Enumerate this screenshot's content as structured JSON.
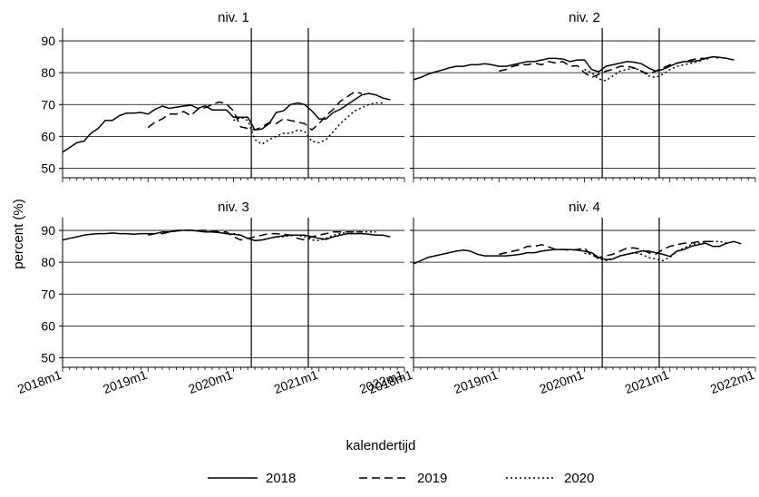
{
  "chart_data": {
    "type": "line",
    "ylabel": "percent (%)",
    "xlabel": "kalendertijd",
    "ylim": [
      47,
      94
    ],
    "yticks": [
      50,
      60,
      70,
      80,
      90
    ],
    "ytick_labels": [
      "50",
      "60",
      "70",
      "80",
      "90"
    ],
    "xlim": [
      0,
      48
    ],
    "xticks": [
      0,
      12,
      24,
      36,
      48
    ],
    "xtick_labels": [
      "2018m1",
      "2019m1",
      "2020m1",
      "2021m1",
      "2022m1"
    ],
    "vlines": [
      26.5,
      34.5
    ],
    "grid": "horizontal",
    "legend": {
      "position": "bottom",
      "entries": [
        {
          "label": "2018",
          "dash": "solid"
        },
        {
          "label": "2019",
          "dash": "dashed"
        },
        {
          "label": "2020",
          "dash": "dotted"
        }
      ]
    },
    "panels": [
      {
        "title": "niv. 1",
        "series": [
          {
            "name": "2018",
            "start": 0,
            "values": [
              55,
              56.5,
              58,
              58.5,
              61,
              62.5,
              65,
              65,
              66.5,
              67.3,
              67.3,
              67.5,
              67,
              68.5,
              69.5,
              68.8,
              69.2,
              69.5,
              69.8,
              68.8,
              69.6,
              68.3,
              68.3,
              68.3,
              66,
              66,
              66,
              62,
              62.3,
              64,
              67.5,
              68,
              70,
              70.5,
              70,
              68,
              65.5,
              65.5,
              67.5,
              68.5,
              70,
              71.5,
              73,
              73.5,
              73,
              72,
              71.5
            ]
          },
          {
            "name": "2019",
            "start": 12,
            "values": [
              62.8,
              64.5,
              65.5,
              67,
              67,
              67.8,
              66.5,
              68.5,
              69,
              70,
              70.8,
              70.2,
              68,
              63,
              62.5,
              62,
              63,
              64.3,
              64,
              65.5,
              65,
              64.5,
              64,
              62,
              64,
              66.5,
              68.5,
              71,
              72.5,
              74,
              73.5
            ]
          },
          {
            "name": "2020",
            "start": 24,
            "values": [
              65,
              66,
              65,
              59,
              57.5,
              59,
              60,
              61,
              61,
              62,
              61.5,
              58.5,
              58,
              59,
              61.5,
              64,
              66,
              68,
              69,
              70,
              70.5,
              70.5
            ]
          }
        ]
      },
      {
        "title": "niv. 2",
        "series": [
          {
            "name": "2018",
            "start": 0,
            "values": [
              77.8,
              78.5,
              79.5,
              80.2,
              80.8,
              81.5,
              82,
              82,
              82.5,
              82.5,
              82.8,
              82.5,
              82,
              82,
              82.5,
              83,
              83.5,
              83.5,
              84,
              84.5,
              84.5,
              84.3,
              83.5,
              84,
              84,
              81,
              80.3,
              82,
              82.5,
              83,
              83.5,
              83.3,
              82.8,
              81.5,
              80.5,
              81,
              82,
              83,
              83.5,
              83.5,
              83.8,
              84.5,
              85,
              84.8,
              84.5,
              84
            ]
          },
          {
            "name": "2019",
            "start": 12,
            "values": [
              80.5,
              81,
              82,
              82.5,
              82.5,
              83,
              82.5,
              83.5,
              83,
              83.5,
              82,
              82.2,
              80,
              78.5,
              79.5,
              80.5,
              81,
              82,
              82,
              81.5,
              80.5,
              79.5,
              80.5,
              81.5,
              82.5,
              83,
              83.5,
              84,
              84.5,
              84.5,
              84
            ]
          },
          {
            "name": "2020",
            "start": 24,
            "values": [
              81,
              80,
              78,
              77.5,
              79,
              80.5,
              81,
              81.5,
              80.5,
              79,
              78.5,
              79.5,
              81,
              82,
              82.5,
              83,
              83.5,
              84.5,
              85,
              84.5
            ]
          }
        ]
      },
      {
        "title": "niv. 3",
        "series": [
          {
            "name": "2018",
            "start": 0,
            "values": [
              87,
              87.5,
              88,
              88.5,
              88.8,
              89,
              89,
              89.2,
              89,
              89,
              88.8,
              89,
              89,
              89,
              89.5,
              89.5,
              90,
              90,
              90,
              89.8,
              89.5,
              89.5,
              89.3,
              89,
              88.8,
              88.5,
              87.5,
              86.8,
              87,
              87.5,
              88,
              88.3,
              88.5,
              88.5,
              88.5,
              88,
              87.5,
              87.2,
              88,
              88.5,
              89,
              89,
              89,
              88.8,
              88.5,
              88.5,
              88
            ]
          },
          {
            "name": "2019",
            "start": 12,
            "values": [
              88.5,
              89,
              89,
              89.5,
              89.8,
              90,
              90,
              90,
              90,
              89.8,
              89.5,
              89.5,
              88,
              87,
              87.5,
              88,
              88.5,
              89,
              89,
              88.8,
              88.5,
              87.5,
              87,
              88,
              88.5,
              89,
              89.5,
              89.5,
              89.5,
              89.5,
              89.5
            ]
          },
          {
            "name": "2020",
            "start": 24,
            "values": [
              89,
              88.5,
              87.5,
              86.8,
              87,
              87.5,
              88,
              88,
              88.5,
              88.5,
              88,
              87,
              86.8,
              87.5,
              88.5,
              89,
              89.5,
              89.5,
              89.5,
              89.5,
              89.5
            ]
          }
        ]
      },
      {
        "title": "niv. 4",
        "series": [
          {
            "name": "2018",
            "start": 0,
            "values": [
              79.5,
              80.5,
              81.5,
              82,
              82.5,
              83,
              83.5,
              83.8,
              83.5,
              82.5,
              82,
              82,
              82,
              82,
              82.2,
              82.5,
              83,
              83,
              83.5,
              83.8,
              84,
              84,
              84,
              83.8,
              83.5,
              83,
              81.5,
              80.8,
              81,
              82,
              82.5,
              83,
              83.5,
              83.5,
              83,
              82.5,
              81.8,
              83.5,
              84,
              85,
              85.5,
              86,
              85,
              85,
              86,
              86.5,
              85.8
            ]
          },
          {
            "name": "2019",
            "start": 12,
            "values": [
              82.5,
              83,
              83.5,
              84,
              85,
              85,
              85.5,
              84.8,
              84,
              84,
              83.8,
              84,
              84.5,
              82,
              81.5,
              82,
              82.5,
              83.5,
              84.5,
              84.5,
              84,
              83,
              82.5,
              84,
              85,
              85.5,
              86,
              86,
              86.5,
              86.5,
              86.5
            ]
          },
          {
            "name": "2020",
            "start": 24,
            "values": [
              82.8,
              82.5,
              81,
              80.5,
              81,
              82,
              82.5,
              83,
              82.5,
              81.5,
              81,
              80.5,
              81.5,
              83.5,
              84.5,
              85.5,
              86,
              86.5,
              86.5,
              86.5,
              86
            ]
          }
        ]
      }
    ]
  }
}
